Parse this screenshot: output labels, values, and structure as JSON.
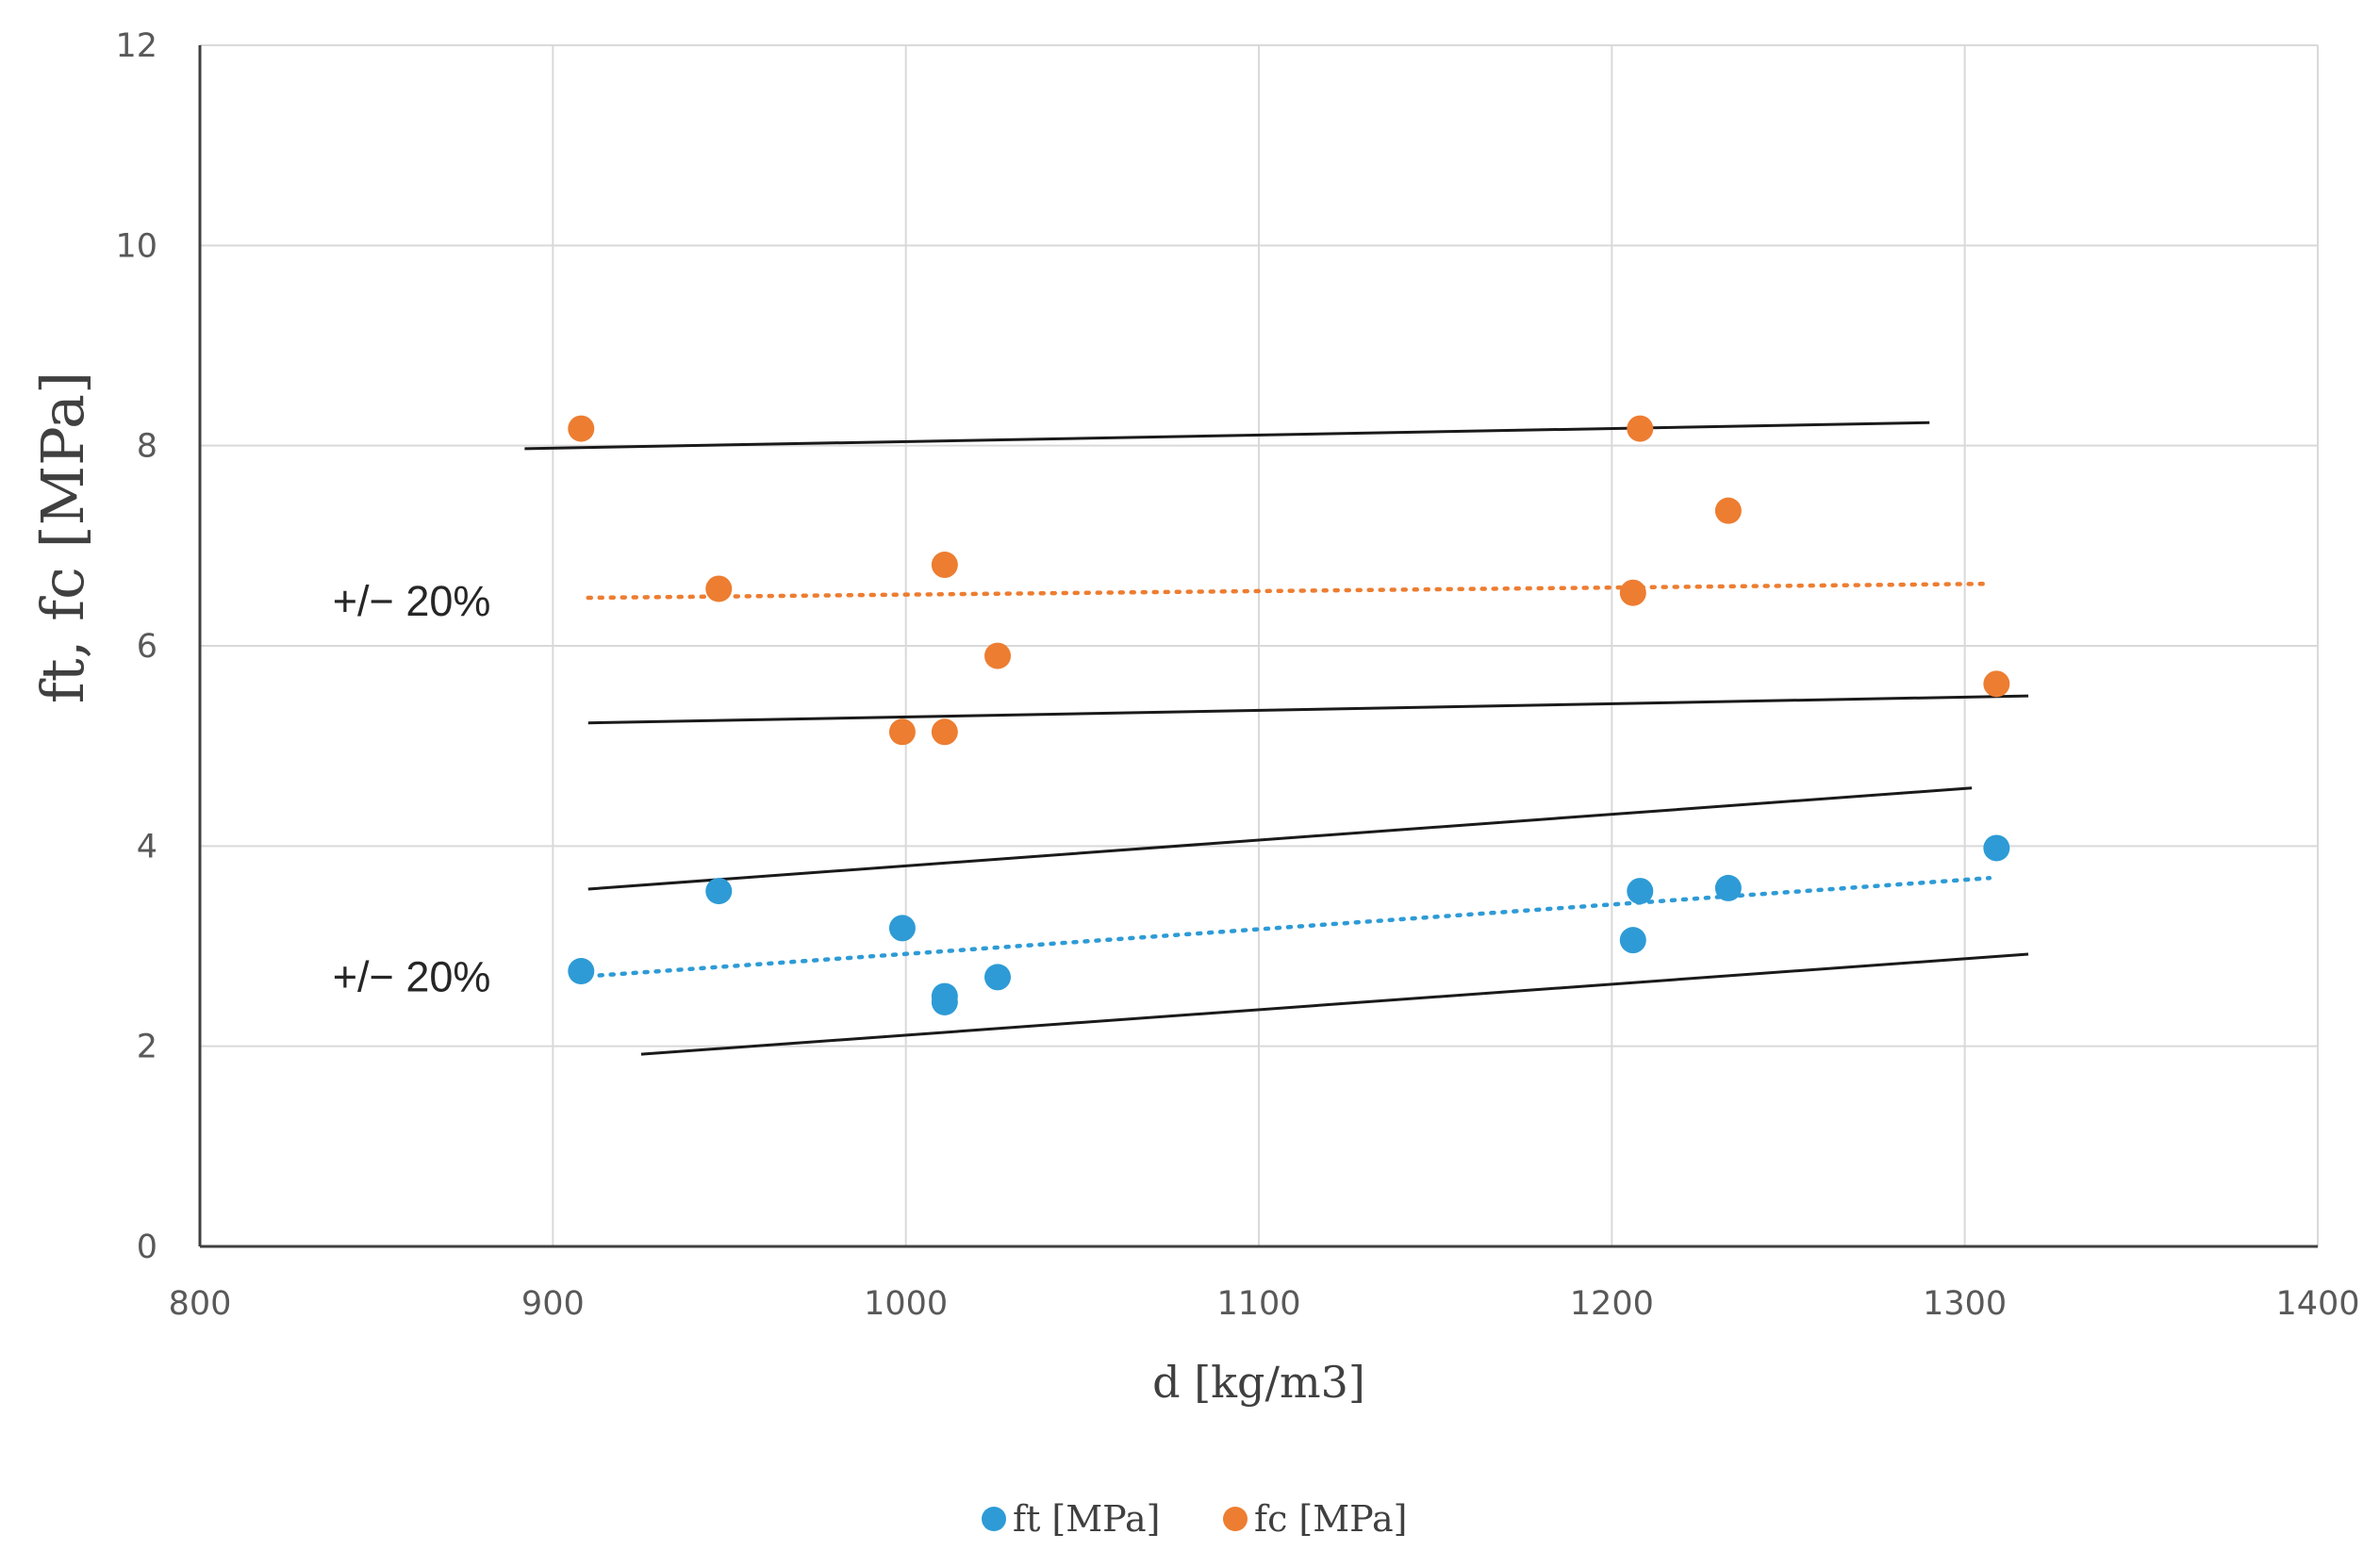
{
  "chart_data": {
    "type": "scatter",
    "xlabel": "d [kg/m3]",
    "ylabel": "ft, fc [MPa]",
    "xlim": [
      800,
      1400
    ],
    "ylim": [
      0,
      12
    ],
    "xticks": [
      "800",
      "900",
      "1000",
      "1100",
      "1200",
      "1300",
      "1400"
    ],
    "yticks": [
      "0",
      "2",
      "4",
      "6",
      "8",
      "10",
      "12"
    ],
    "grid": true,
    "legend_position": "bottom-center",
    "series": [
      {
        "name": "ft [MPa]",
        "color": "#2e9bd6",
        "points": [
          {
            "x": 908,
            "y": 2.75
          },
          {
            "x": 947,
            "y": 3.55
          },
          {
            "x": 999,
            "y": 3.18
          },
          {
            "x": 1011,
            "y": 2.5
          },
          {
            "x": 1011,
            "y": 2.44
          },
          {
            "x": 1026,
            "y": 2.69
          },
          {
            "x": 1206,
            "y": 3.06
          },
          {
            "x": 1208,
            "y": 3.55
          },
          {
            "x": 1233,
            "y": 3.58
          },
          {
            "x": 1309,
            "y": 3.98
          }
        ],
        "trendline": {
          "style": "dotted",
          "from": [
            910,
            2.7
          ],
          "to": [
            1307,
            3.68
          ]
        }
      },
      {
        "name": "fc [MPa]",
        "color": "#ed7d31",
        "points": [
          {
            "x": 908,
            "y": 8.17
          },
          {
            "x": 947,
            "y": 6.57
          },
          {
            "x": 999,
            "y": 5.14
          },
          {
            "x": 1011,
            "y": 6.81
          },
          {
            "x": 1011,
            "y": 5.14
          },
          {
            "x": 1026,
            "y": 5.9
          },
          {
            "x": 1206,
            "y": 6.53
          },
          {
            "x": 1208,
            "y": 8.17
          },
          {
            "x": 1233,
            "y": 7.35
          },
          {
            "x": 1309,
            "y": 5.62
          }
        ],
        "trendline": {
          "style": "dotted",
          "from": [
            910,
            6.48
          ],
          "to": [
            1307,
            6.62
          ]
        }
      }
    ],
    "bounds": [
      {
        "name": "fc-upper-bound",
        "from": [
          892,
          7.97
        ],
        "to": [
          1290,
          8.23
        ]
      },
      {
        "name": "fc-lower-bound",
        "from": [
          910,
          5.23
        ],
        "to": [
          1318,
          5.5
        ]
      },
      {
        "name": "ft-upper-bound",
        "from": [
          910,
          3.57
        ],
        "to": [
          1302,
          4.58
        ]
      },
      {
        "name": "ft-lower-bound",
        "from": [
          925,
          1.92
        ],
        "to": [
          1318,
          2.92
        ]
      }
    ],
    "annotations": [
      {
        "name": "fc-band-label",
        "text": "+/− 20%",
        "x": 860,
        "y": 6.45
      },
      {
        "name": "ft-band-label",
        "text": "+/− 20%",
        "x": 860,
        "y": 2.7
      }
    ]
  }
}
